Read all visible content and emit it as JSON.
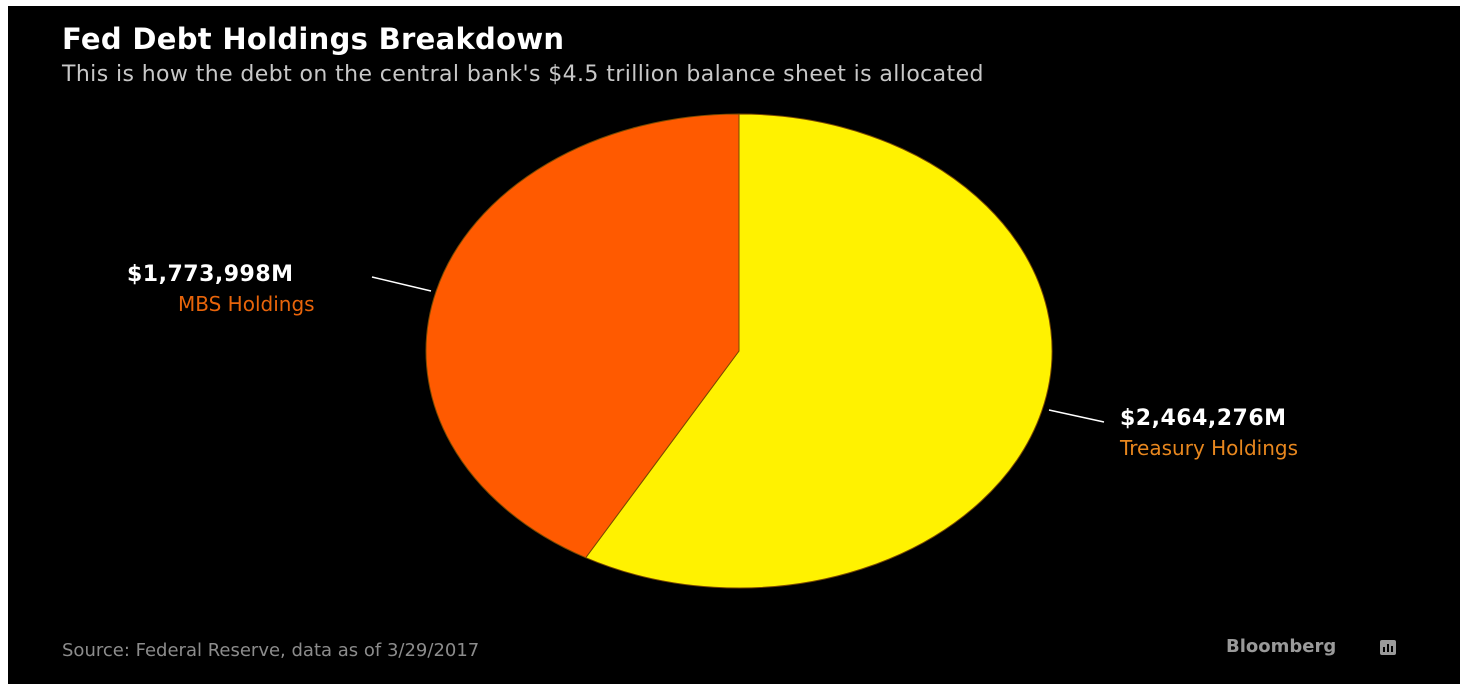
{
  "header": {
    "title": "Fed Debt Holdings Breakdown",
    "subtitle": "This is how the debt on the central bank's $4.5 trillion balance sheet is allocated"
  },
  "chart_data": {
    "type": "pie",
    "title": "Fed Debt Holdings Breakdown",
    "subtitle": "This is how the debt on the central bank's $4.5 trillion balance sheet is allocated",
    "unit": "M",
    "slices": [
      {
        "label": "Treasury Holdings",
        "value": 2464276,
        "value_text": "$2,464,276M",
        "color": "#fff200",
        "label_color": "#e8871e"
      },
      {
        "label": "MBS Holdings",
        "value": 1773998,
        "value_text": "$1,773,998M",
        "color": "#ff5a00",
        "label_color": "#e8640a"
      }
    ],
    "start_angle": "12 o'clock",
    "direction": "clockwise"
  },
  "footer": {
    "source": "Source: Federal Reserve, data as of 3/29/2017",
    "brand": "Bloomberg",
    "brand_icon": "bloomberg-chart-icon"
  },
  "colors": {
    "background": "#000000",
    "title": "#ffffff",
    "subtitle": "#c8c8c8",
    "source": "#8c8c8c",
    "leader_line": "#ffffff"
  }
}
